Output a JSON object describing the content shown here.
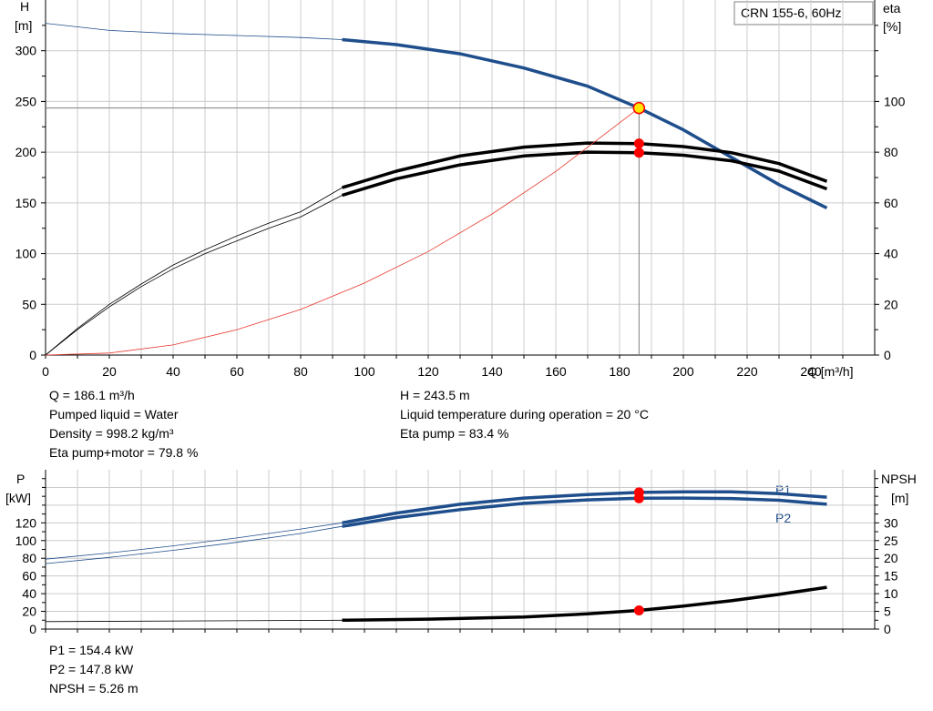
{
  "title_box": "CRN 155-6, 60Hz",
  "colors": {
    "head": "#1f4e8c",
    "power": "#1f4e8c",
    "efficiency": "#000000",
    "npsh": "#000000",
    "system_curve": "#e8382c",
    "operating_point": "#ff0000",
    "duty_marker": "#ffe600",
    "grid": "#cccccc"
  },
  "info_left": [
    "Q = 186.1 m³/h",
    "Pumped liquid = Water",
    "Density = 998.2 kg/m³",
    "Eta pump+motor = 79.8 %"
  ],
  "info_right": [
    "H = 243.5 m",
    "Liquid temperature during operation = 20 °C",
    "Eta pump = 83.4 %"
  ],
  "info_bottom": [
    "P1 = 154.4 kW",
    "P2 = 147.8 kW",
    "NPSH = 5.26 m"
  ],
  "chart_data": [
    {
      "type": "line",
      "x_axis": {
        "label": "Q [m³/h]",
        "range": [
          0,
          260
        ],
        "ticks": [
          0,
          20,
          40,
          60,
          80,
          100,
          120,
          140,
          160,
          180,
          200,
          220,
          240
        ]
      },
      "y_left": {
        "label_lines": [
          "H",
          "[m]"
        ],
        "range": [
          0,
          350
        ],
        "ticks": [
          0,
          50,
          100,
          150,
          200,
          250,
          300
        ]
      },
      "y_right": {
        "label_lines": [
          "eta",
          "[%]"
        ],
        "range": [
          0,
          140
        ],
        "ticks": [
          0,
          20,
          40,
          60,
          80,
          100
        ]
      },
      "grid": true,
      "operating_point": {
        "q": 186.1,
        "h": 243.5,
        "eta_pump": 83.4,
        "eta_total": 79.8
      },
      "series": [
        {
          "key": "head",
          "axis": "left",
          "x": [
            0,
            20,
            40,
            60,
            80,
            93,
            110,
            130,
            150,
            170,
            186.1,
            200,
            215,
            230,
            245
          ],
          "y": [
            327,
            320,
            317,
            315,
            313,
            311,
            306,
            297,
            283,
            265,
            243.5,
            222,
            195,
            168,
            145
          ],
          "bold_from": 93
        },
        {
          "key": "eta_pump",
          "axis": "right",
          "x": [
            0,
            10,
            20,
            30,
            40,
            50,
            60,
            70,
            80,
            93,
            110,
            130,
            150,
            170,
            186.1,
            200,
            215,
            230,
            245
          ],
          "y": [
            0,
            10.5,
            20,
            28,
            35.5,
            41.5,
            47,
            52,
            56.5,
            66,
            72.5,
            78.5,
            82,
            83.6,
            83.4,
            82.2,
            79.8,
            75.5,
            68.5
          ],
          "bold_from": 93
        },
        {
          "key": "eta_total",
          "axis": "right",
          "x": [
            0,
            10,
            20,
            30,
            40,
            50,
            60,
            70,
            80,
            93,
            110,
            130,
            150,
            170,
            186.1,
            200,
            215,
            230,
            245
          ],
          "y": [
            0,
            10,
            19,
            27,
            34,
            40,
            45,
            50,
            54.5,
            63,
            69.5,
            75,
            78.5,
            80,
            79.8,
            78.8,
            76.6,
            72.5,
            65.5
          ],
          "bold_from": 93
        },
        {
          "key": "system",
          "axis": "left",
          "x": [
            0,
            20,
            40,
            60,
            80,
            100,
            120,
            140,
            160,
            186.1
          ],
          "y": [
            0,
            2,
            10,
            25,
            45,
            71,
            102,
            139,
            181,
            243.5
          ]
        }
      ]
    },
    {
      "type": "line",
      "x_axis": {
        "range": [
          0,
          260
        ],
        "ticks": [
          0,
          20,
          40,
          60,
          80,
          100,
          120,
          140,
          160,
          180,
          200,
          220,
          240
        ]
      },
      "y_left": {
        "label_lines": [
          "P",
          "[kW]"
        ],
        "range": [
          0,
          180
        ],
        "ticks": [
          0,
          20,
          40,
          60,
          80,
          100,
          120
        ]
      },
      "y_right": {
        "label_lines": [
          "NPSH",
          "[m]"
        ],
        "range": [
          0,
          45
        ],
        "ticks": [
          0,
          5,
          10,
          15,
          20,
          25,
          30
        ]
      },
      "grid": true,
      "operating_point": {
        "q": 186.1,
        "p1": 154.4,
        "p2": 147.8,
        "npsh": 5.26
      },
      "series": [
        {
          "key": "P1",
          "name": "P1",
          "axis": "left",
          "x": [
            0,
            20,
            40,
            60,
            80,
            93,
            110,
            130,
            150,
            170,
            186.1,
            200,
            215,
            230,
            245
          ],
          "y": [
            79,
            86,
            94,
            103,
            113,
            120,
            131,
            141,
            148,
            152,
            154.4,
            155,
            155,
            153,
            149
          ],
          "bold_from": 93
        },
        {
          "key": "P2",
          "name": "P2",
          "axis": "left",
          "x": [
            0,
            20,
            40,
            60,
            80,
            93,
            110,
            130,
            150,
            170,
            186.1,
            200,
            215,
            230,
            245
          ],
          "y": [
            74,
            81,
            89,
            98,
            108,
            116,
            126,
            135,
            142,
            146,
            147.8,
            148,
            147.5,
            145.5,
            141
          ],
          "bold_from": 93
        },
        {
          "key": "NPSH",
          "axis": "right",
          "x": [
            0,
            93,
            120,
            150,
            170,
            186.1,
            200,
            215,
            230,
            245
          ],
          "y": [
            2.1,
            2.5,
            2.8,
            3.4,
            4.3,
            5.26,
            6.5,
            8.0,
            9.8,
            11.8
          ],
          "bold_from": 93
        }
      ]
    }
  ]
}
